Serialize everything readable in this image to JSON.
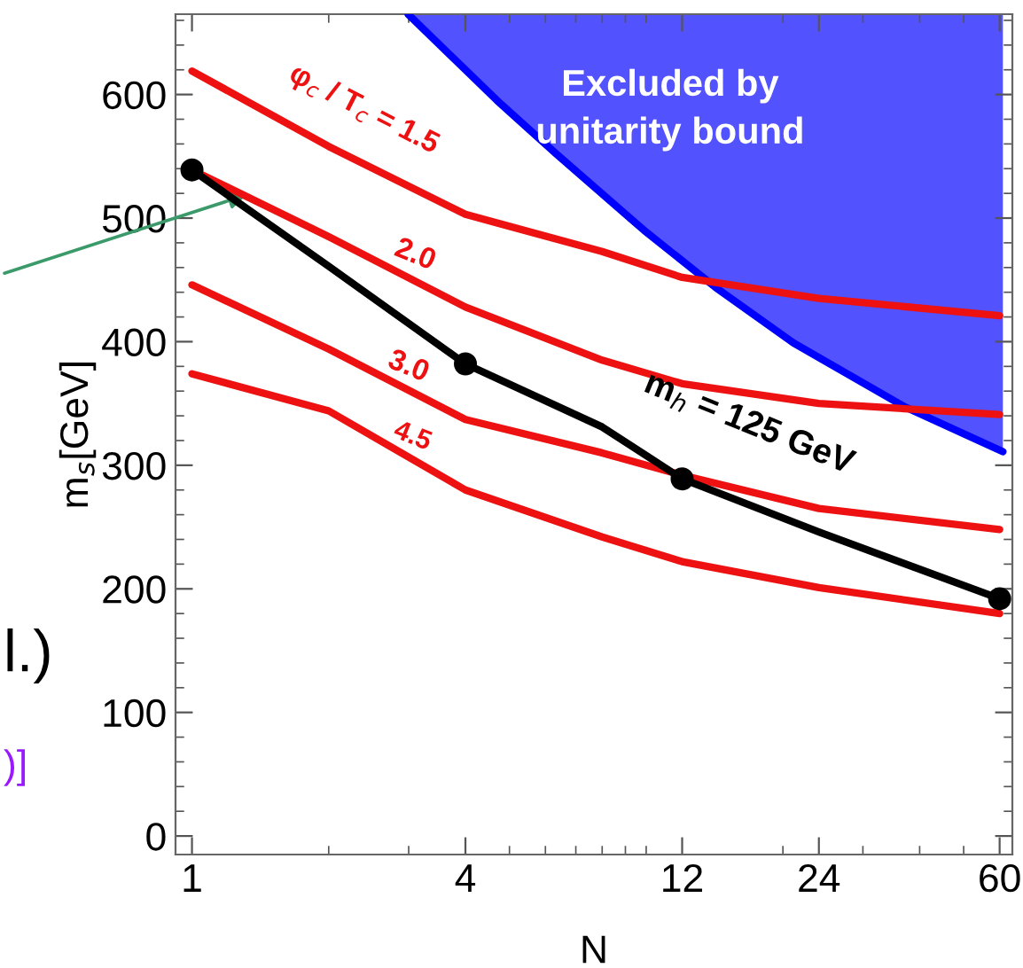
{
  "chart_data": {
    "type": "line",
    "xlabel": "N",
    "ylabel": "m$_{s}$[GeV]",
    "log": "x",
    "xlim": [
      0.92,
      64
    ],
    "xticks": [
      1,
      4,
      12,
      24,
      60
    ],
    "ylim": [
      -15,
      665
    ],
    "yticks": [
      0,
      100,
      200,
      300,
      400,
      500,
      600
    ],
    "grid": false,
    "series": [
      {
        "type": "line",
        "color": "#0000ff",
        "x": [
          2.99,
          4.7,
          6.34,
          9.9,
          14.2,
          21.1,
          37.2,
          61.0
        ],
        "values": [
          665,
          595,
          552,
          490,
          444,
          399,
          347,
          311
        ],
        "lower": [
          665,
          595,
          552,
          490,
          444,
          399,
          347,
          311
        ],
        "upper": [
          665,
          665,
          665,
          665,
          665,
          665,
          665,
          665
        ]
      },
      {
        "color": "#ee1111",
        "x": [
          1,
          2,
          4,
          8,
          12,
          24,
          60
        ],
        "values": [
          619,
          558,
          503,
          473,
          452,
          435,
          421
        ]
      },
      {
        "color": "#ee1111",
        "x": [
          1,
          2,
          4,
          8,
          12,
          24,
          60
        ],
        "values": [
          539,
          485,
          428,
          385,
          366,
          350,
          341
        ]
      },
      {
        "color": "#ee1111",
        "x": [
          1,
          2,
          4,
          8,
          12,
          24,
          60
        ],
        "values": [
          446,
          394,
          337,
          310,
          292,
          265,
          248
        ]
      },
      {
        "color": "#ee1111",
        "x": [
          1,
          2,
          4,
          8,
          12,
          24,
          60
        ],
        "values": [
          374,
          344,
          280,
          242,
          222,
          201,
          180
        ]
      },
      {
        "color": "#000000",
        "x": [
          1,
          2,
          4,
          8,
          12,
          24,
          60
        ],
        "values": [
          539,
          461,
          382,
          331,
          289,
          246,
          192
        ],
        "marker": "none"
      },
      {
        "type": "scatter",
        "color": "#000000",
        "x": [
          1,
          4,
          12,
          60
        ],
        "values": [
          539,
          382,
          289,
          192
        ],
        "marker": "circle"
      }
    ],
    "annotations": [
      "Excluded by\nunitarity bound",
      "φ$_{c}$ / T$_{c}$ = 1.5",
      "2.0",
      "3.0",
      "4.5",
      "m$_{h}$ = 125 GeV",
      "l.)",
      ")]"
    ]
  }
}
